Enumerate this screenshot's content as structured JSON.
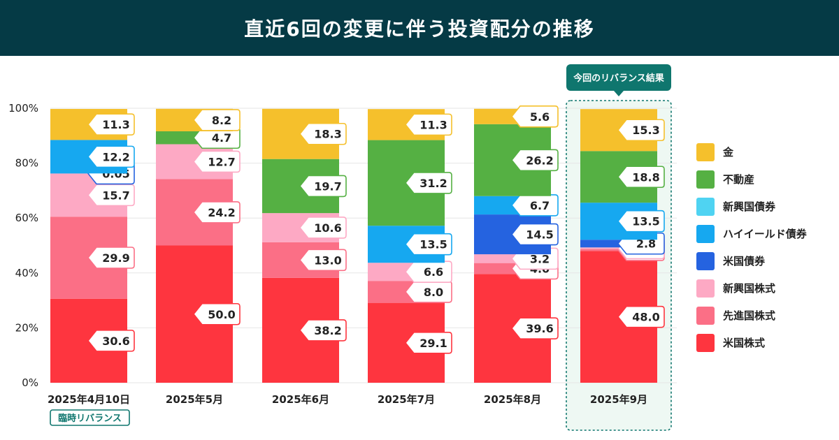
{
  "title": "直近6回の変更に伴う投資配分の推移",
  "highlight_label": "今回のリバランス結果",
  "temp_badge": "臨時リバランス",
  "colors": {
    "gold": "#f5c02c",
    "real_estate": "#55b043",
    "em_bonds": "#4fd3f2",
    "high_yield": "#16a8f0",
    "us_bonds": "#2563e0",
    "em_stocks": "#fda9c4",
    "dev_stocks": "#fb6f86",
    "us_stocks": "#fe353f",
    "header_bg": "#053a45",
    "highlight": "#0f766e"
  },
  "legend": [
    {
      "key": "gold",
      "label": "金"
    },
    {
      "key": "real_estate",
      "label": "不動産"
    },
    {
      "key": "em_bonds",
      "label": "新興国債券"
    },
    {
      "key": "high_yield",
      "label": "ハイイールド債券"
    },
    {
      "key": "us_bonds",
      "label": "米国債券"
    },
    {
      "key": "em_stocks",
      "label": "新興国株式"
    },
    {
      "key": "dev_stocks",
      "label": "先進国株式"
    },
    {
      "key": "us_stocks",
      "label": "米国株式"
    }
  ],
  "chart_data": {
    "type": "bar",
    "stacked": true,
    "y_ticks": [
      "0%",
      "20%",
      "40%",
      "60%",
      "80%",
      "100%"
    ],
    "ylim": [
      0,
      100
    ],
    "categories": [
      "2025年4月10日",
      "2025年5月",
      "2025年6月",
      "2025年7月",
      "2025年8月",
      "2025年9月"
    ],
    "series": [
      {
        "name": "米国株式",
        "key": "us_stocks",
        "values": [
          30.6,
          50.0,
          38.2,
          29.1,
          39.6,
          48.0
        ],
        "labels": [
          "30.6",
          "50.0",
          "38.2",
          "29.1",
          "39.6",
          "48.0"
        ]
      },
      {
        "name": "先進国株式",
        "key": "dev_stocks",
        "values": [
          29.9,
          24.2,
          13.0,
          8.0,
          4.0,
          0.7
        ],
        "labels": [
          "29.9",
          "24.2",
          "13.0",
          "8.0",
          "4.0",
          "0.7"
        ]
      },
      {
        "name": "新興国株式",
        "key": "em_stocks",
        "values": [
          15.7,
          12.7,
          10.6,
          6.6,
          3.2,
          0.6
        ],
        "labels": [
          "15.7",
          "12.7",
          "10.6",
          "6.6",
          "3.2",
          "0.6"
        ]
      },
      {
        "name": "米国債券",
        "key": "us_bonds",
        "values": [
          0.05,
          0,
          0,
          0,
          14.5,
          2.8
        ],
        "labels": [
          "0.05",
          "",
          "",
          "",
          "14.5",
          "2.8"
        ]
      },
      {
        "name": "ハイイールド債券",
        "key": "high_yield",
        "values": [
          12.2,
          0,
          0,
          13.5,
          6.7,
          13.5
        ],
        "labels": [
          "12.2",
          "",
          "",
          "13.5",
          "6.7",
          "13.5"
        ]
      },
      {
        "name": "新興国債券",
        "key": "em_bonds",
        "values": [
          0,
          0,
          0,
          0,
          0,
          0
        ],
        "labels": [
          "",
          "",
          "",
          "",
          "",
          ""
        ]
      },
      {
        "name": "不動産",
        "key": "real_estate",
        "values": [
          0,
          4.7,
          19.7,
          31.2,
          26.2,
          18.8
        ],
        "labels": [
          "",
          "4.7",
          "19.7",
          "31.2",
          "26.2",
          "18.8"
        ]
      },
      {
        "name": "金",
        "key": "gold",
        "values": [
          11.3,
          8.2,
          18.3,
          11.3,
          5.6,
          15.3
        ],
        "labels": [
          "11.3",
          "8.2",
          "18.3",
          "11.3",
          "5.6",
          "15.3"
        ]
      }
    ],
    "highlight_index": 5,
    "legend_position": "right",
    "grid": true
  }
}
